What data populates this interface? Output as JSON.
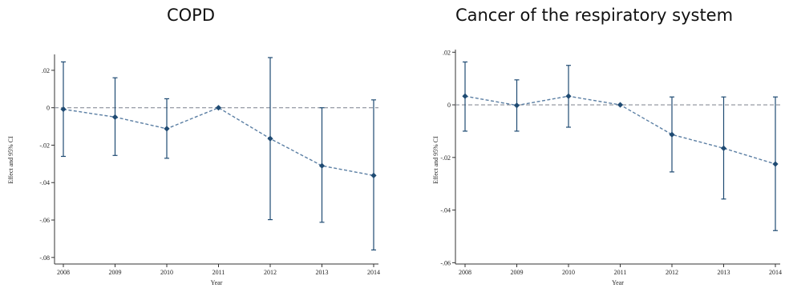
{
  "chart_data": [
    {
      "type": "scatter",
      "title": "COPD",
      "xlabel": "Year",
      "ylabel": "Effect and 95% CI",
      "x": [
        2008,
        2009,
        2010,
        2011,
        2012,
        2013,
        2014
      ],
      "y": [
        -0.0008,
        -0.005,
        -0.0112,
        0.0,
        -0.0165,
        -0.031,
        -0.0362
      ],
      "ci_low": [
        -0.026,
        -0.0255,
        -0.027,
        0.0,
        -0.0598,
        -0.0612,
        -0.076
      ],
      "ci_high": [
        0.0245,
        0.016,
        0.0048,
        0.0,
        0.0268,
        0.0,
        0.0042
      ],
      "yticks": [
        0.02,
        0,
        -0.02,
        -0.04,
        -0.06,
        -0.08
      ],
      "ytick_labels": [
        ".02",
        "0",
        "-.02",
        "-.04",
        "-.06",
        "-.08"
      ],
      "xtick_labels": [
        "2008",
        "2009",
        "2010",
        "2011",
        "2012",
        "2013",
        "2014"
      ],
      "ylim": [
        -0.0835,
        0.0285
      ],
      "reference_line": 0,
      "marker": "diamond",
      "line_style": "dashed"
    },
    {
      "type": "scatter",
      "title": "Cancer of the respiratory system",
      "xlabel": "Year",
      "ylabel": "Effect and 95% CI",
      "x": [
        2008,
        2009,
        2010,
        2011,
        2012,
        2013,
        2014
      ],
      "y": [
        0.0033,
        -0.0002,
        0.0033,
        0.0,
        -0.0113,
        -0.0165,
        -0.0225
      ],
      "ci_low": [
        -0.01,
        -0.01,
        -0.0085,
        0.0,
        -0.0255,
        -0.0358,
        -0.0478
      ],
      "ci_high": [
        0.0163,
        0.0095,
        0.015,
        0.0,
        0.003,
        0.003,
        0.003
      ],
      "yticks": [
        0.02,
        0,
        -0.02,
        -0.04,
        -0.06
      ],
      "ytick_labels": [
        ".02",
        "0",
        "-.02",
        "-.04",
        "-.06"
      ],
      "xtick_labels": [
        "2008",
        "2009",
        "2010",
        "2011",
        "2012",
        "2013",
        "2014"
      ],
      "ylim": [
        -0.0605,
        0.021
      ],
      "reference_line": 0,
      "marker": "diamond",
      "line_style": "dashed"
    }
  ]
}
